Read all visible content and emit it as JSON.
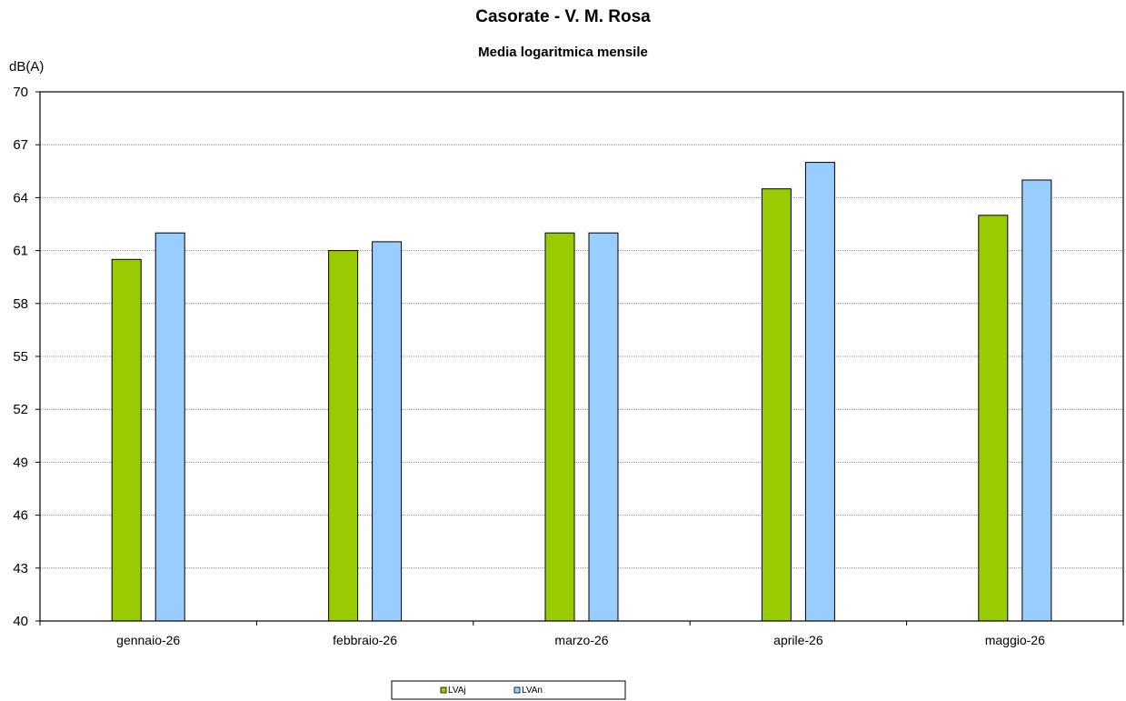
{
  "chart_data": {
    "type": "bar",
    "title": "Casorate - V. M. Rosa",
    "subtitle": "Media logaritmica mensile",
    "ylabel": "dB(A)",
    "xlabel": "",
    "categories": [
      "gennaio-26",
      "febbraio-26",
      "marzo-26",
      "aprile-26",
      "maggio-26"
    ],
    "series": [
      {
        "name": "LVAj",
        "color": "#99cc00",
        "values": [
          60.5,
          61,
          62,
          64.5,
          63
        ]
      },
      {
        "name": "LVAn",
        "color": "#99ccff",
        "values": [
          62,
          61.5,
          62,
          66,
          65
        ]
      }
    ],
    "ylim": [
      40,
      70
    ],
    "yticks": [
      40,
      43,
      46,
      49,
      52,
      55,
      58,
      61,
      64,
      67,
      70
    ],
    "grid": true,
    "legend_position": "bottom"
  }
}
